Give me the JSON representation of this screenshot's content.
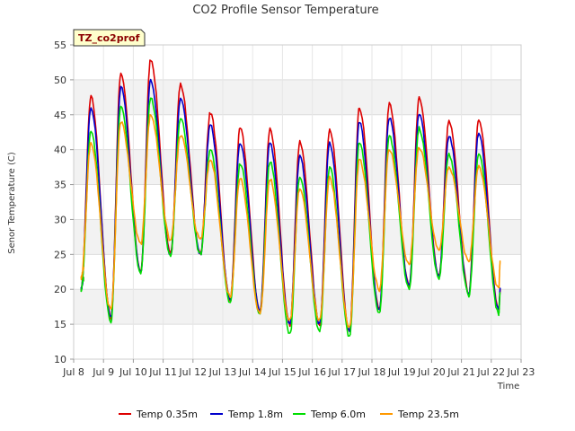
{
  "chart_data": {
    "type": "line",
    "title": "CO2 Profile Sensor Temperature",
    "xlabel": "Time",
    "ylabel": "Senor Temperature (C)",
    "site_tag": "TZ_co2prof",
    "xlim": [
      8,
      23
    ],
    "ylim": [
      10,
      55
    ],
    "x_ticks": [
      8,
      9,
      10,
      11,
      12,
      13,
      14,
      15,
      16,
      17,
      18,
      19,
      20,
      21,
      22,
      23
    ],
    "x_tick_labels": [
      "Jul 8",
      "Jul 9",
      "Jul 10",
      "Jul 11",
      "Jul 12",
      "Jul 13",
      "Jul 14",
      "Jul 15",
      "Jul 16",
      "Jul 17",
      "Jul 18",
      "Jul 19",
      "Jul 20",
      "Jul 21",
      "Jul 22",
      "Jul 23"
    ],
    "y_ticks": [
      10,
      15,
      20,
      25,
      30,
      35,
      40,
      45,
      50,
      55
    ],
    "grid": true,
    "legend_position": "bottom",
    "series": [
      {
        "name": "Temp 0.35m",
        "color": "#dd0000",
        "day_start": 8.33,
        "minima": [
          20,
          16,
          22.5,
          25,
          25,
          18.5,
          17,
          15,
          15,
          14,
          17,
          20.5,
          22,
          19.5,
          17,
          20
        ],
        "maxima": [
          47.5,
          51,
          53,
          49.3,
          45.3,
          43,
          43,
          41,
          43,
          46,
          46.5,
          47.3,
          44,
          44.5
        ]
      },
      {
        "name": "Temp 1.8m",
        "color": "#0000cc",
        "day_start": 8.33,
        "minima": [
          20,
          16,
          22.5,
          25,
          25,
          18.5,
          17,
          15,
          15,
          14,
          17,
          20.5,
          22,
          19.5,
          17,
          20
        ],
        "maxima": [
          46,
          49,
          50,
          47.3,
          43.5,
          41,
          41,
          39,
          41,
          44,
          44.5,
          45,
          42,
          42.5
        ]
      },
      {
        "name": "Temp 6.0m",
        "color": "#00dd00",
        "day_start": 8.33,
        "minima": [
          20,
          15.5,
          22.5,
          24.8,
          25,
          18,
          16.5,
          13.5,
          14,
          13.2,
          16.5,
          20,
          21.5,
          19.2,
          16.5,
          19.5
        ],
        "maxima": [
          42.5,
          46.2,
          47.5,
          44.5,
          40,
          38,
          38.3,
          36,
          37.5,
          41,
          42,
          43,
          39.3,
          39.5
        ]
      },
      {
        "name": "Temp 23.5m",
        "color": "#ff9900",
        "day_start": 8.33,
        "minima": [
          21.5,
          17,
          26.5,
          27,
          27,
          19,
          16.5,
          15.5,
          15.5,
          14.5,
          20,
          23.5,
          25.5,
          24,
          20,
          24
        ],
        "maxima": [
          41,
          44,
          45,
          42,
          38.5,
          36,
          35.8,
          34.5,
          36,
          38.5,
          40,
          40.3,
          37.5,
          37.5
        ]
      }
    ]
  }
}
